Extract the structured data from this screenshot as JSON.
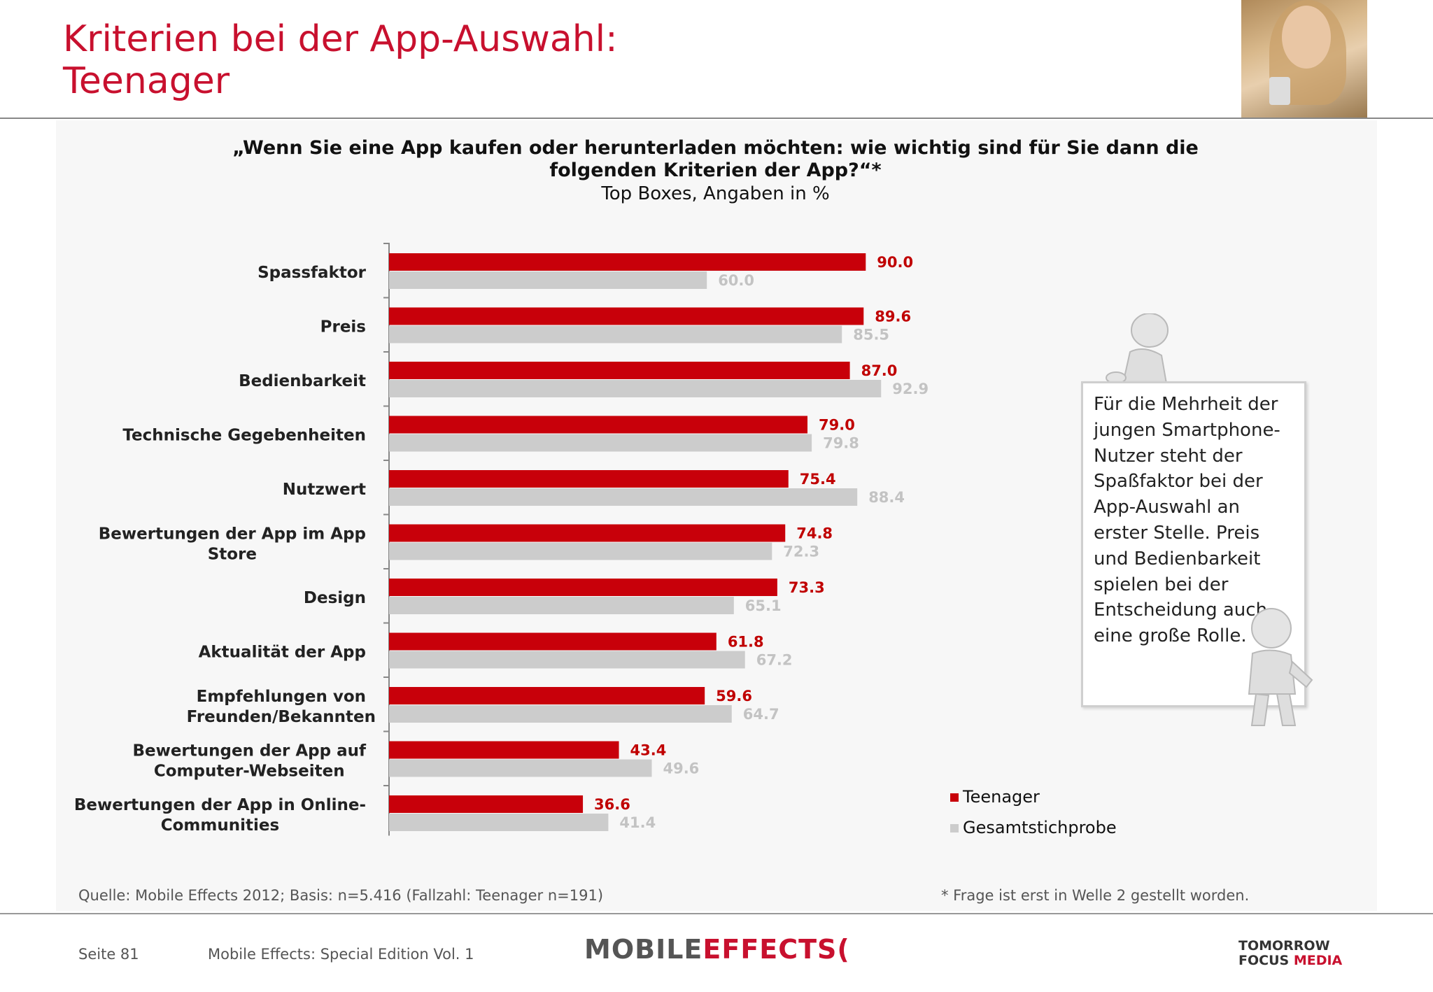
{
  "header": {
    "title_line1": "Kriterien bei der App-Auswahl:",
    "title_line2": "Teenager"
  },
  "question": {
    "line1": "„Wenn Sie eine App kaufen oder herunterladen möchten: wie wichtig sind für Sie dann die",
    "line2": "folgenden Kriterien der App?“*",
    "subtitle": "Top Boxes, Angaben in %"
  },
  "colors": {
    "teenager": "#c8000a",
    "gesamt": "#cccccc",
    "teenager_label": "#c00000",
    "gesamt_label": "#c3c3c3",
    "title": "#c8102e"
  },
  "chart_data": {
    "type": "bar",
    "orientation": "horizontal",
    "categories": [
      [
        "Spassfaktor"
      ],
      [
        "Preis"
      ],
      [
        "Bedienbarkeit"
      ],
      [
        "Technische Gegebenheiten"
      ],
      [
        "Nutzwert"
      ],
      [
        "Bewertungen der App im App",
        "Store"
      ],
      [
        "Design"
      ],
      [
        "Aktualität der App"
      ],
      [
        "Empfehlungen von",
        "Freunden/Bekannten"
      ],
      [
        "Bewertungen der App auf",
        "Computer-Webseiten"
      ],
      [
        "Bewertungen der App in Online-",
        "Communities"
      ]
    ],
    "series": [
      {
        "name": "Teenager",
        "values": [
          90.0,
          89.6,
          87.0,
          79.0,
          75.4,
          74.8,
          73.3,
          61.8,
          59.6,
          43.4,
          36.6
        ]
      },
      {
        "name": "Gesamtstichprobe",
        "values": [
          60.0,
          85.5,
          92.9,
          79.8,
          88.4,
          72.3,
          65.1,
          67.2,
          64.7,
          49.6,
          41.4
        ]
      }
    ],
    "xlim": [
      0,
      100
    ],
    "legend": "bottom-right"
  },
  "note": {
    "text": "Für die Mehrheit der jungen Smartphone-Nutzer steht der Spaßfaktor bei der App-Auswahl an erster Stelle. Preis und Bedienbarkeit spielen bei der Entscheidung auch eine große Rolle."
  },
  "legend": {
    "teenager": "Teenager",
    "gesamt": "Gesamtstichprobe"
  },
  "footer": {
    "source": "Quelle: Mobile Effects 2012; Basis: n=5.416 (Fallzahl: Teenager n=191)",
    "footnote": "* Frage ist erst in Welle 2 gestellt worden.",
    "page": "Seite 81",
    "edition": "Mobile Effects: Special Edition Vol. 1",
    "logo_me_part1": "MOBILE",
    "logo_me_part2": "EFFECTS",
    "logo_me_mark": "(",
    "logo_tfm_line1": "TOMORROW",
    "logo_tfm_line2a": "FOCUS",
    "logo_tfm_line2b": "MEDIA"
  }
}
